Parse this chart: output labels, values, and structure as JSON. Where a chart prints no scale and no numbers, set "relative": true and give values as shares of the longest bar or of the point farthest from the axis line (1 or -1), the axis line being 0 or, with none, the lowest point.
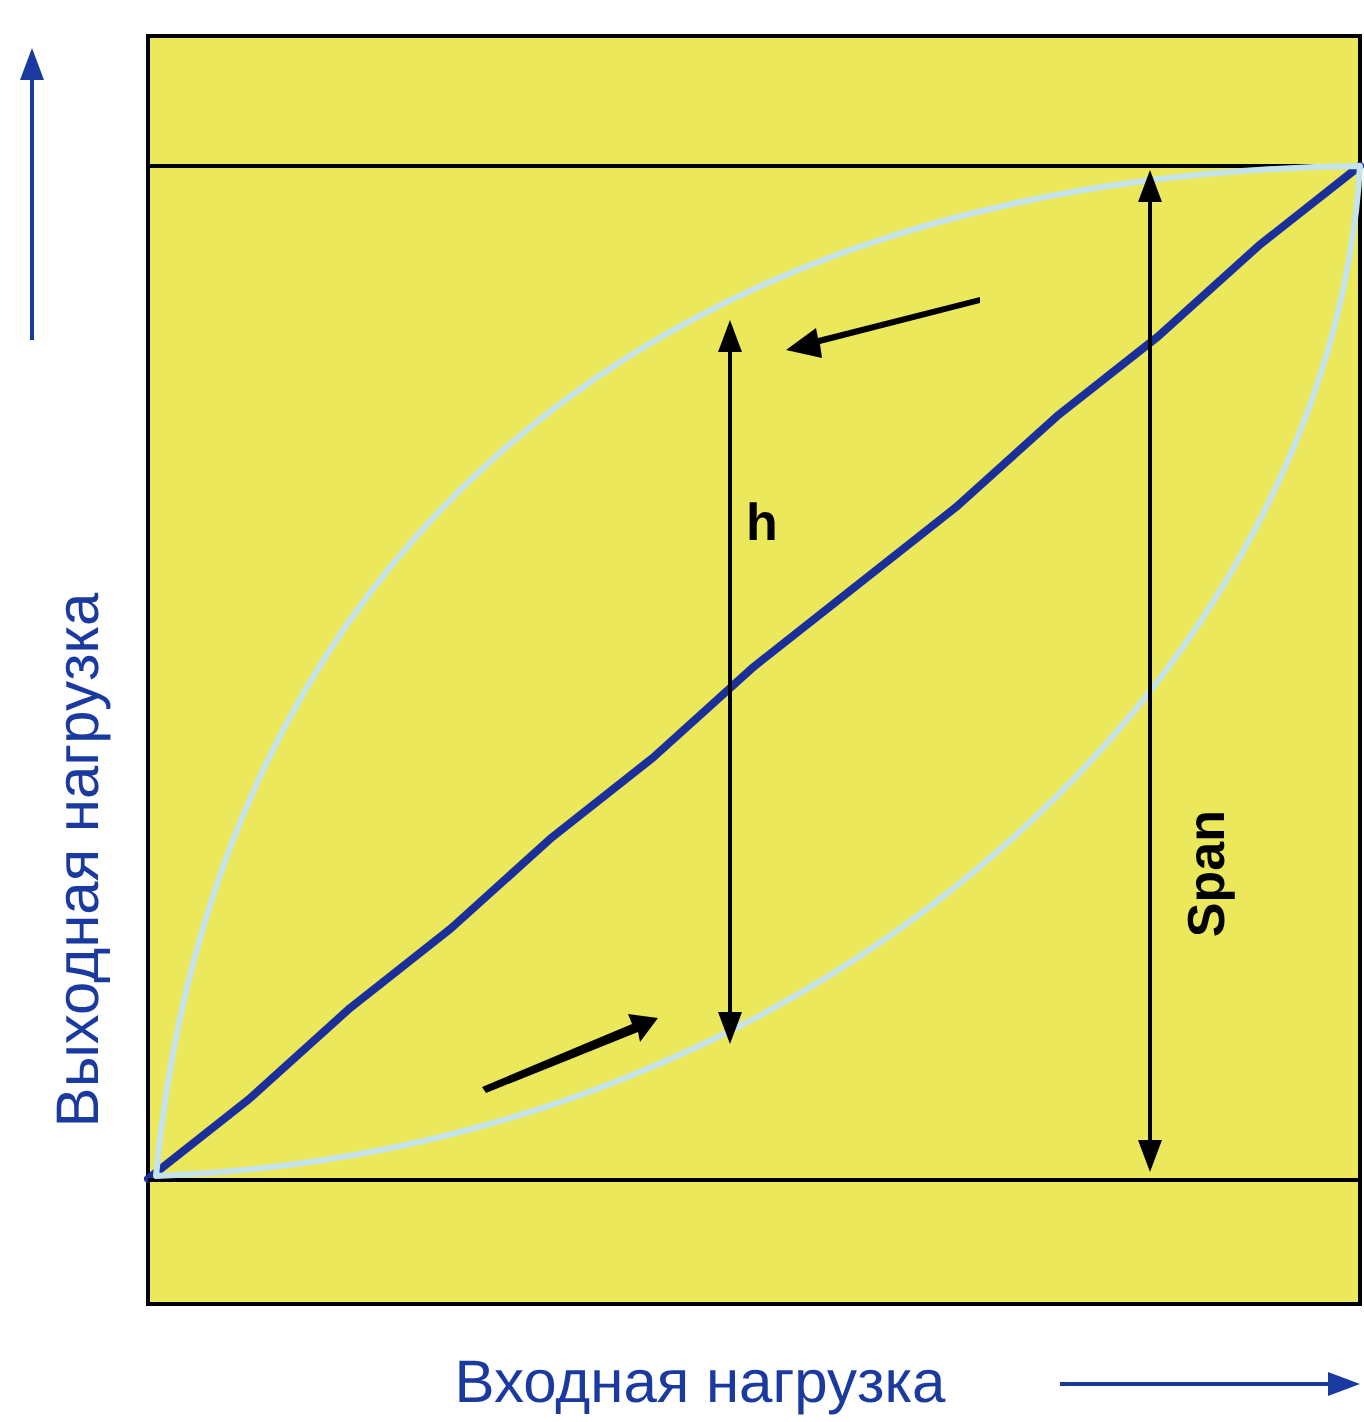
{
  "chart_data": {
    "type": "line",
    "relative": true,
    "xlabel": "Входная нагрузка",
    "ylabel": "Выходная нагрузка",
    "categories": [
      null,
      null,
      null,
      null,
      null,
      null,
      null,
      null,
      null,
      null,
      null,
      null,
      null
    ],
    "marker": "none",
    "grid": false,
    "series": [
      {
        "color": "#1a2f9a",
        "values": [
          0.11,
          0.18,
          0.26,
          0.33,
          0.41,
          0.48,
          0.56,
          0.63,
          0.7,
          0.78,
          0.85,
          0.93,
          1
        ]
      }
    ],
    "ref_lines": [
      {
        "axis": "y",
        "value": 0.11,
        "color": "#000000"
      },
      {
        "axis": "y",
        "value": 1,
        "color": "#000000"
      }
    ],
    "annotations": [
      "h",
      "Span"
    ]
  }
}
